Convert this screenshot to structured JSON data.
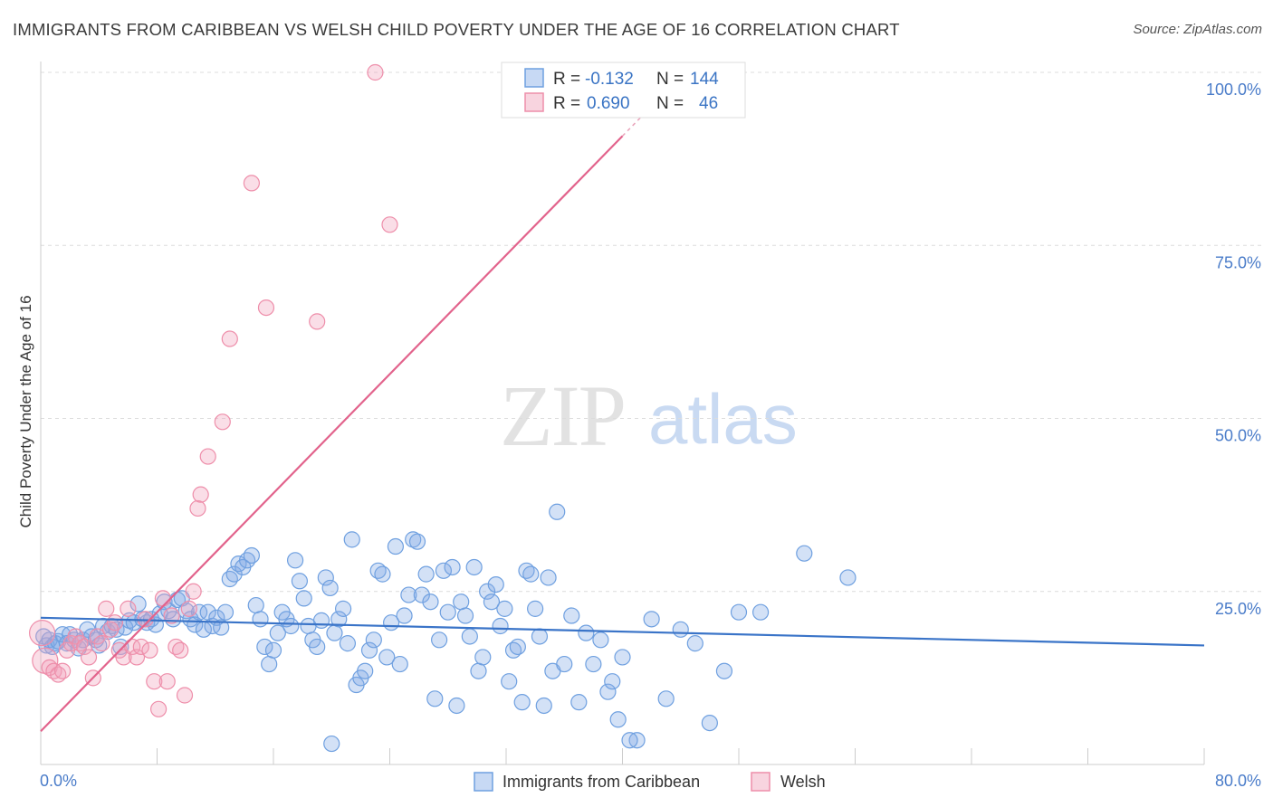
{
  "title": "IMMIGRANTS FROM CARIBBEAN VS WELSH CHILD POVERTY UNDER THE AGE OF 16 CORRELATION CHART",
  "source": "Source: ZipAtlas.com",
  "watermark": {
    "zip": "ZIP",
    "atlas": "atlas"
  },
  "colors": {
    "blue": "#6fa0e0",
    "blue_fill": "rgba(130,170,230,0.35)",
    "blue_line": "#3a74c8",
    "pink": "#ee8eaa",
    "pink_fill": "rgba(240,160,185,0.35)",
    "pink_line": "#e2638c",
    "tick_text": "#4a7cc9"
  },
  "legend": {
    "rows": [
      {
        "r_label": "R =",
        "r_value": "-0.132",
        "n_label": "N =",
        "n_value": "144"
      },
      {
        "r_label": "R =",
        "r_value": "0.690",
        "n_label": "N =",
        "n_value": "46"
      }
    ]
  },
  "chart_data": {
    "type": "scatter",
    "xlabel": "",
    "ylabel": "Child Poverty Under the Age of 16",
    "xlim": [
      0,
      80
    ],
    "ylim": [
      0,
      100
    ],
    "x_tick_labels": [
      "0.0%",
      "80.0%"
    ],
    "y_ticks": [
      {
        "value": 25,
        "label": "25.0%"
      },
      {
        "value": 50,
        "label": "50.0%"
      },
      {
        "value": 75,
        "label": "75.0%"
      },
      {
        "value": 100,
        "label": "100.0%"
      }
    ],
    "grid": true,
    "series": [
      {
        "name": "Immigrants from Caribbean",
        "color": "#6fa0e0",
        "trend": {
          "x": [
            0,
            80
          ],
          "y": [
            21.2,
            17.2
          ]
        },
        "points": [
          [
            0.2,
            18.5
          ],
          [
            0.4,
            17.2
          ],
          [
            0.6,
            18.0
          ],
          [
            0.8,
            17.0
          ],
          [
            1.0,
            17.5
          ],
          [
            1.2,
            17.8
          ],
          [
            1.5,
            18.8
          ],
          [
            1.8,
            17.5
          ],
          [
            2.0,
            18.8
          ],
          [
            2.3,
            18.0
          ],
          [
            2.6,
            16.8
          ],
          [
            2.9,
            18.0
          ],
          [
            3.2,
            19.5
          ],
          [
            3.5,
            18.5
          ],
          [
            3.8,
            18.0
          ],
          [
            4.0,
            17.2
          ],
          [
            4.3,
            20.0
          ],
          [
            4.6,
            19.2
          ],
          [
            4.9,
            20.0
          ],
          [
            5.2,
            19.5
          ],
          [
            5.5,
            17.0
          ],
          [
            5.8,
            19.8
          ],
          [
            6.1,
            20.8
          ],
          [
            6.4,
            20.5
          ],
          [
            6.7,
            23.2
          ],
          [
            7.0,
            21.0
          ],
          [
            7.3,
            20.5
          ],
          [
            7.6,
            21.0
          ],
          [
            7.9,
            20.2
          ],
          [
            8.2,
            21.8
          ],
          [
            8.5,
            23.5
          ],
          [
            8.8,
            22.2
          ],
          [
            9.1,
            21.0
          ],
          [
            9.4,
            23.8
          ],
          [
            9.7,
            24.0
          ],
          [
            10.0,
            22.2
          ],
          [
            10.3,
            21.0
          ],
          [
            10.6,
            20.2
          ],
          [
            10.9,
            22.0
          ],
          [
            11.2,
            19.5
          ],
          [
            11.5,
            22.0
          ],
          [
            11.8,
            20.0
          ],
          [
            12.1,
            21.2
          ],
          [
            12.4,
            19.8
          ],
          [
            12.7,
            22.0
          ],
          [
            13.0,
            26.8
          ],
          [
            13.3,
            27.5
          ],
          [
            13.6,
            29.0
          ],
          [
            13.9,
            28.5
          ],
          [
            14.2,
            29.5
          ],
          [
            14.5,
            30.2
          ],
          [
            14.8,
            23.0
          ],
          [
            15.1,
            21.0
          ],
          [
            15.4,
            17.0
          ],
          [
            15.7,
            14.5
          ],
          [
            16.0,
            16.5
          ],
          [
            16.3,
            19.0
          ],
          [
            16.6,
            22.0
          ],
          [
            16.9,
            21.0
          ],
          [
            17.2,
            20.0
          ],
          [
            17.5,
            29.5
          ],
          [
            17.8,
            26.5
          ],
          [
            18.1,
            24.0
          ],
          [
            18.4,
            20.0
          ],
          [
            18.7,
            18.0
          ],
          [
            19.0,
            17.0
          ],
          [
            19.3,
            20.8
          ],
          [
            19.6,
            27.0
          ],
          [
            19.9,
            25.5
          ],
          [
            20.2,
            19.0
          ],
          [
            20.5,
            21.0
          ],
          [
            20.8,
            22.5
          ],
          [
            21.1,
            17.5
          ],
          [
            21.4,
            32.5
          ],
          [
            21.7,
            11.5
          ],
          [
            22.0,
            12.5
          ],
          [
            22.3,
            13.5
          ],
          [
            22.6,
            16.5
          ],
          [
            22.9,
            18.0
          ],
          [
            23.2,
            28.0
          ],
          [
            23.5,
            27.5
          ],
          [
            23.8,
            15.5
          ],
          [
            24.1,
            20.5
          ],
          [
            24.4,
            31.5
          ],
          [
            24.7,
            14.5
          ],
          [
            25.0,
            21.5
          ],
          [
            25.3,
            24.5
          ],
          [
            25.6,
            32.5
          ],
          [
            25.9,
            32.2
          ],
          [
            26.2,
            24.5
          ],
          [
            26.5,
            27.5
          ],
          [
            26.8,
            23.5
          ],
          [
            27.1,
            9.5
          ],
          [
            27.4,
            18.0
          ],
          [
            27.7,
            28.0
          ],
          [
            28.0,
            22.0
          ],
          [
            28.3,
            28.5
          ],
          [
            28.6,
            8.5
          ],
          [
            28.9,
            23.5
          ],
          [
            29.2,
            21.5
          ],
          [
            29.5,
            18.5
          ],
          [
            29.8,
            28.5
          ],
          [
            30.1,
            13.5
          ],
          [
            30.4,
            15.5
          ],
          [
            30.7,
            25.0
          ],
          [
            31.0,
            23.5
          ],
          [
            31.3,
            26.0
          ],
          [
            31.6,
            20.0
          ],
          [
            31.9,
            22.5
          ],
          [
            32.2,
            12.0
          ],
          [
            32.5,
            16.5
          ],
          [
            32.8,
            17.0
          ],
          [
            33.1,
            9.0
          ],
          [
            33.4,
            28.0
          ],
          [
            33.7,
            27.5
          ],
          [
            34.0,
            22.5
          ],
          [
            34.3,
            18.5
          ],
          [
            34.6,
            8.5
          ],
          [
            34.9,
            27.0
          ],
          [
            35.2,
            13.5
          ],
          [
            35.5,
            36.5
          ],
          [
            36.0,
            14.5
          ],
          [
            36.5,
            21.5
          ],
          [
            37.0,
            9.0
          ],
          [
            37.5,
            19.0
          ],
          [
            38.0,
            14.5
          ],
          [
            38.5,
            18.0
          ],
          [
            39.0,
            10.5
          ],
          [
            39.3,
            12.0
          ],
          [
            39.7,
            6.5
          ],
          [
            40.0,
            15.5
          ],
          [
            41.0,
            3.5
          ],
          [
            42.0,
            21.0
          ],
          [
            43.0,
            9.5
          ],
          [
            44.0,
            19.5
          ],
          [
            45.0,
            17.5
          ],
          [
            46.0,
            6.0
          ],
          [
            47.0,
            13.5
          ],
          [
            48.0,
            22.0
          ],
          [
            49.5,
            22.0
          ],
          [
            52.5,
            30.5
          ],
          [
            55.5,
            27.0
          ],
          [
            20.0,
            3.0
          ],
          [
            40.5,
            3.5
          ]
        ]
      },
      {
        "name": "Welsh",
        "color": "#ee8eaa",
        "trend": {
          "x": [
            0,
            40
          ],
          "y": [
            4.8,
            90.8
          ]
        },
        "points": [
          [
            0.1,
            19.0
          ],
          [
            0.3,
            15.0
          ],
          [
            0.6,
            14.0
          ],
          [
            0.9,
            13.5
          ],
          [
            1.2,
            13.0
          ],
          [
            1.5,
            13.5
          ],
          [
            1.8,
            16.5
          ],
          [
            2.1,
            17.5
          ],
          [
            2.4,
            18.5
          ],
          [
            2.7,
            17.5
          ],
          [
            3.0,
            17.0
          ],
          [
            3.3,
            15.5
          ],
          [
            3.6,
            12.5
          ],
          [
            3.9,
            18.5
          ],
          [
            4.2,
            17.5
          ],
          [
            4.5,
            22.5
          ],
          [
            4.8,
            19.5
          ],
          [
            5.1,
            20.5
          ],
          [
            5.4,
            16.5
          ],
          [
            5.7,
            15.5
          ],
          [
            6.0,
            22.5
          ],
          [
            6.3,
            17.0
          ],
          [
            6.6,
            15.5
          ],
          [
            6.9,
            17.0
          ],
          [
            7.2,
            21.0
          ],
          [
            7.5,
            16.5
          ],
          [
            7.8,
            12.0
          ],
          [
            8.1,
            8.0
          ],
          [
            8.4,
            24.0
          ],
          [
            8.7,
            12.0
          ],
          [
            9.0,
            21.5
          ],
          [
            9.3,
            17.0
          ],
          [
            9.6,
            16.5
          ],
          [
            9.9,
            10.0
          ],
          [
            10.2,
            22.5
          ],
          [
            10.5,
            25.0
          ],
          [
            10.8,
            37.0
          ],
          [
            11.0,
            39.0
          ],
          [
            11.5,
            44.5
          ],
          [
            12.5,
            49.5
          ],
          [
            13.0,
            61.5
          ],
          [
            14.5,
            84.0
          ],
          [
            15.5,
            66.0
          ],
          [
            19.0,
            64.0
          ],
          [
            24.0,
            78.0
          ],
          [
            23.0,
            100.0
          ]
        ]
      }
    ]
  }
}
